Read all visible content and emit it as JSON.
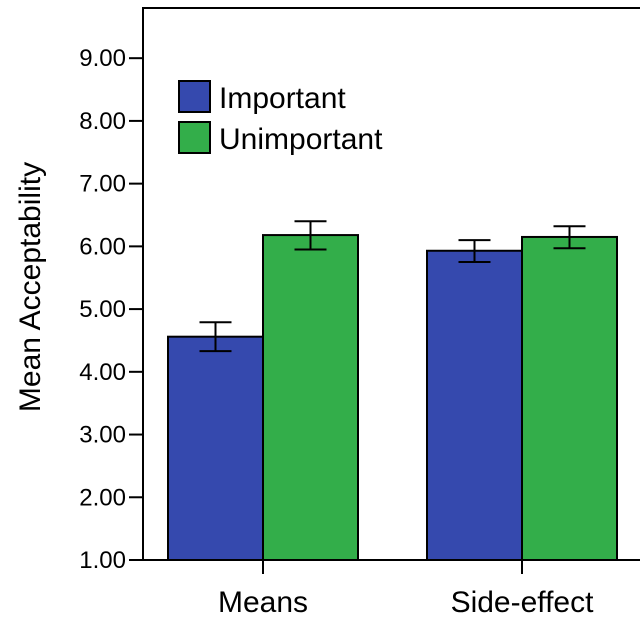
{
  "chart_data": {
    "type": "bar",
    "title": "",
    "xlabel": "",
    "ylabel": "Mean Acceptability",
    "ylim": [
      1,
      9.8
    ],
    "yticks": [
      "1.00",
      "2.00",
      "3.00",
      "4.00",
      "5.00",
      "6.00",
      "7.00",
      "8.00",
      "9.00"
    ],
    "categories": [
      "Means",
      "Side-effect"
    ],
    "series": [
      {
        "name": "Important",
        "color": "#3549AE",
        "values": [
          4.56,
          5.93
        ],
        "error": [
          [
            4.33,
            4.79
          ],
          [
            5.75,
            6.1
          ]
        ]
      },
      {
        "name": "Unimportant",
        "color": "#33AE4A",
        "values": [
          6.18,
          6.15
        ],
        "error": [
          [
            5.95,
            6.4
          ],
          [
            5.97,
            6.32
          ]
        ]
      }
    ],
    "legend_position": "top-left",
    "grid": false
  }
}
